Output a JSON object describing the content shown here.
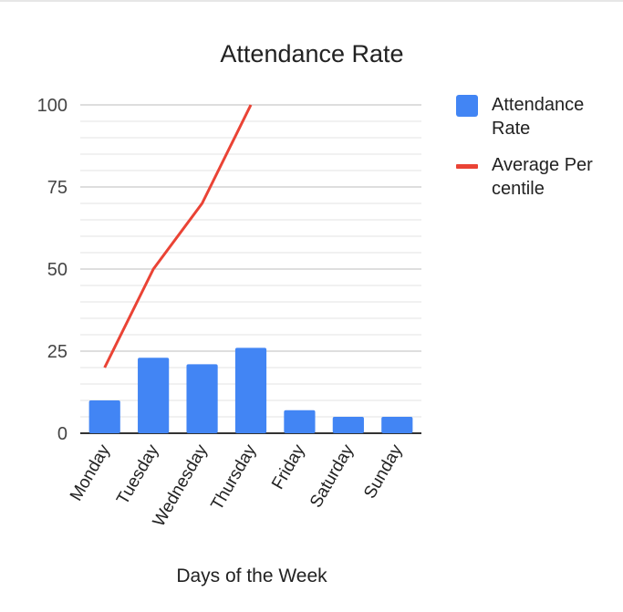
{
  "chart_data": {
    "type": "bar",
    "title": "Attendance Rate",
    "xlabel": "Days of the Week",
    "ylabel": "",
    "categories": [
      "Monday",
      "Tuesday",
      "Wednesday",
      "Thursday",
      "Friday",
      "Saturday",
      "Sunday"
    ],
    "ylim": [
      0,
      100
    ],
    "yticks": [
      0,
      25,
      50,
      75,
      100
    ],
    "grid": true,
    "legend_position": "right",
    "series": [
      {
        "name": "Attendance Rate",
        "type": "bar",
        "color": "#4285f4",
        "values": [
          10,
          23,
          21,
          26,
          7,
          5,
          5
        ]
      },
      {
        "name": "Average Percentile",
        "type": "line",
        "color": "#ea4335",
        "values": [
          20,
          50,
          70,
          100,
          null,
          null,
          null
        ]
      }
    ]
  }
}
